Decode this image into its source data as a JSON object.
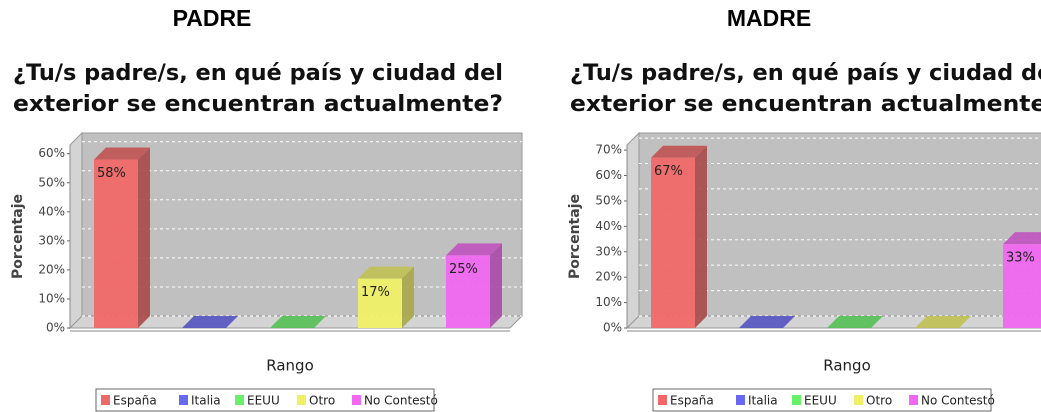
{
  "chart_data": [
    {
      "type": "bar3d",
      "heading": "PADRE",
      "title": [
        "¿Tu/s padre/s, en qué país y ciudad del",
        "exterior se encuentran actualmente?"
      ],
      "xlabel": "Rango",
      "ylabel": "Porcentaje",
      "categories": [
        "España",
        "Italia",
        "EEUU",
        "Otro",
        "No Contestó"
      ],
      "colors": [
        "#f06868",
        "#6868f0",
        "#68f068",
        "#f0f068",
        "#f068f0"
      ],
      "values": [
        58,
        0,
        0,
        17,
        25
      ],
      "value_labels": [
        "58%",
        null,
        null,
        "17%",
        "25%"
      ],
      "ylim": [
        0,
        63
      ],
      "yticks": [
        {
          "value": 0,
          "label": "0%"
        },
        {
          "value": 10,
          "label": "10%"
        },
        {
          "value": 20,
          "label": "20%"
        },
        {
          "value": 30,
          "label": "30%"
        },
        {
          "value": 40,
          "label": "40%"
        },
        {
          "value": 50,
          "label": "50%"
        },
        {
          "value": 60,
          "label": "60%"
        }
      ],
      "grid": true
    },
    {
      "type": "bar3d",
      "heading": "MADRE",
      "title": [
        "¿Tu/s padre/s, en qué país y ciudad del",
        "exterior se encuentran actualmente?"
      ],
      "xlabel": "Rango",
      "ylabel": "Porcentaje",
      "categories": [
        "España",
        "Italia",
        "EEUU",
        "Otro",
        "No Contestó"
      ],
      "colors": [
        "#f06868",
        "#6868f0",
        "#68f068",
        "#f0f068",
        "#f068f0"
      ],
      "values": [
        67,
        0,
        0,
        0,
        33
      ],
      "value_labels": [
        "67%",
        null,
        null,
        null,
        "33%"
      ],
      "ylim": [
        0,
        72
      ],
      "yticks": [
        {
          "value": 0,
          "label": "0%"
        },
        {
          "value": 10,
          "label": "10%"
        },
        {
          "value": 20,
          "label": "20%"
        },
        {
          "value": 30,
          "label": "30%"
        },
        {
          "value": 40,
          "label": "40%"
        },
        {
          "value": 50,
          "label": "50%"
        },
        {
          "value": 60,
          "label": "60%"
        },
        {
          "value": 70,
          "label": "70%"
        }
      ],
      "grid": true
    }
  ]
}
